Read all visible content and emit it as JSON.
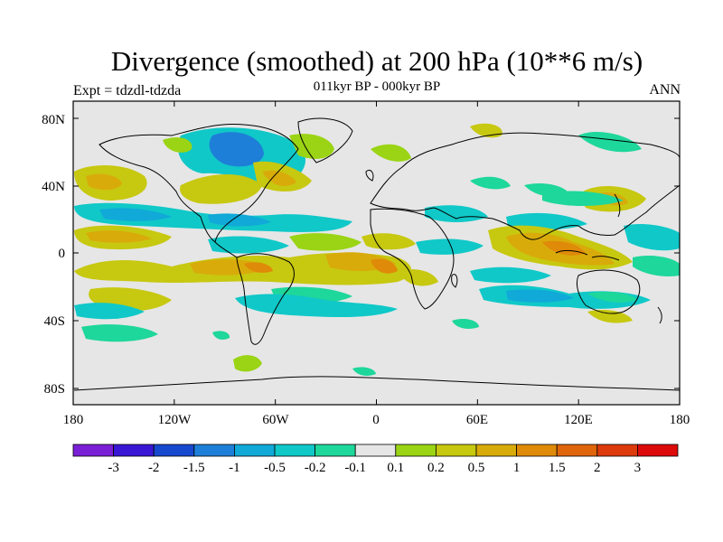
{
  "title": "Divergence (smoothed) at 200 hPa (10**6 m/s)",
  "subtitle": "011kyr BP - 000kyr BP",
  "left_label": "Expt = tdzdl-tdzda",
  "right_label": "ANN",
  "lat_ticks": [
    "80N",
    "40N",
    "0",
    "40S",
    "80S"
  ],
  "lon_ticks": [
    "180",
    "120W",
    "60W",
    "0",
    "60E",
    "120E",
    "180"
  ],
  "colorbar": {
    "colors": [
      "#7b1fd6",
      "#3a17d4",
      "#1749cf",
      "#1e7fd8",
      "#10a9d8",
      "#10c8c8",
      "#1ed79a",
      "#e6e6e6",
      "#9ad414",
      "#c7c810",
      "#d8ab0a",
      "#df8a08",
      "#e0640a",
      "#dc3b0c",
      "#dd0a0a"
    ],
    "labels": [
      "-3",
      "-2",
      "-1.5",
      "-1",
      "-0.5",
      "-0.2",
      "-0.1",
      "0.1",
      "0.2",
      "0.5",
      "1",
      "1.5",
      "2",
      "3"
    ]
  }
}
